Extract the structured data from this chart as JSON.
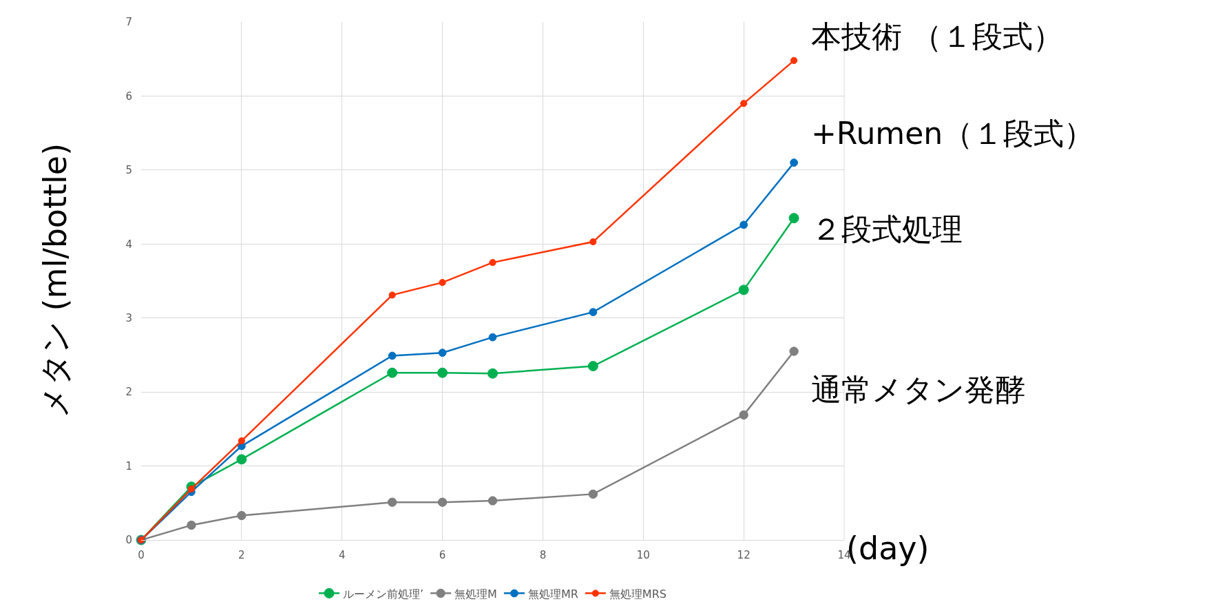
{
  "chart_data": {
    "type": "line",
    "xlabel": "(day)",
    "ylabel": "メタン (ml/bottle)",
    "x": [
      0,
      1,
      2,
      5,
      6,
      7,
      9,
      12,
      13
    ],
    "series": [
      {
        "name": "ルーメン前処理’",
        "color": "#00b050",
        "values": [
          0,
          0.72,
          1.09,
          2.26,
          2.26,
          2.25,
          2.35,
          3.38,
          4.35
        ]
      },
      {
        "name": "無処理M",
        "color": "#7f7f7f",
        "values": [
          0,
          0.2,
          0.33,
          0.51,
          0.51,
          0.53,
          0.62,
          1.69,
          2.55
        ]
      },
      {
        "name": "無処理MR",
        "color": "#0070c0",
        "values": [
          0,
          0.65,
          1.27,
          2.49,
          2.53,
          2.74,
          3.08,
          4.26,
          5.1
        ]
      },
      {
        "name": "無処理MRS",
        "color": "#ff3300",
        "values": [
          0,
          0.69,
          1.34,
          3.31,
          3.48,
          3.75,
          4.03,
          5.9,
          6.48
        ]
      }
    ],
    "annotations": [
      "本技術 （１段式）",
      "+Rumen（１段式）",
      "２段式処理",
      "通常メタン発酵"
    ],
    "xlim": [
      0,
      14
    ],
    "xticks": [
      0,
      2,
      4,
      6,
      8,
      10,
      12,
      14
    ],
    "ylim": [
      0,
      7
    ],
    "yticks": [
      0,
      1,
      2,
      3,
      4,
      5,
      6,
      7
    ],
    "grid": true,
    "legend": "bottom",
    "marker": "circle",
    "line_style": "solid"
  }
}
